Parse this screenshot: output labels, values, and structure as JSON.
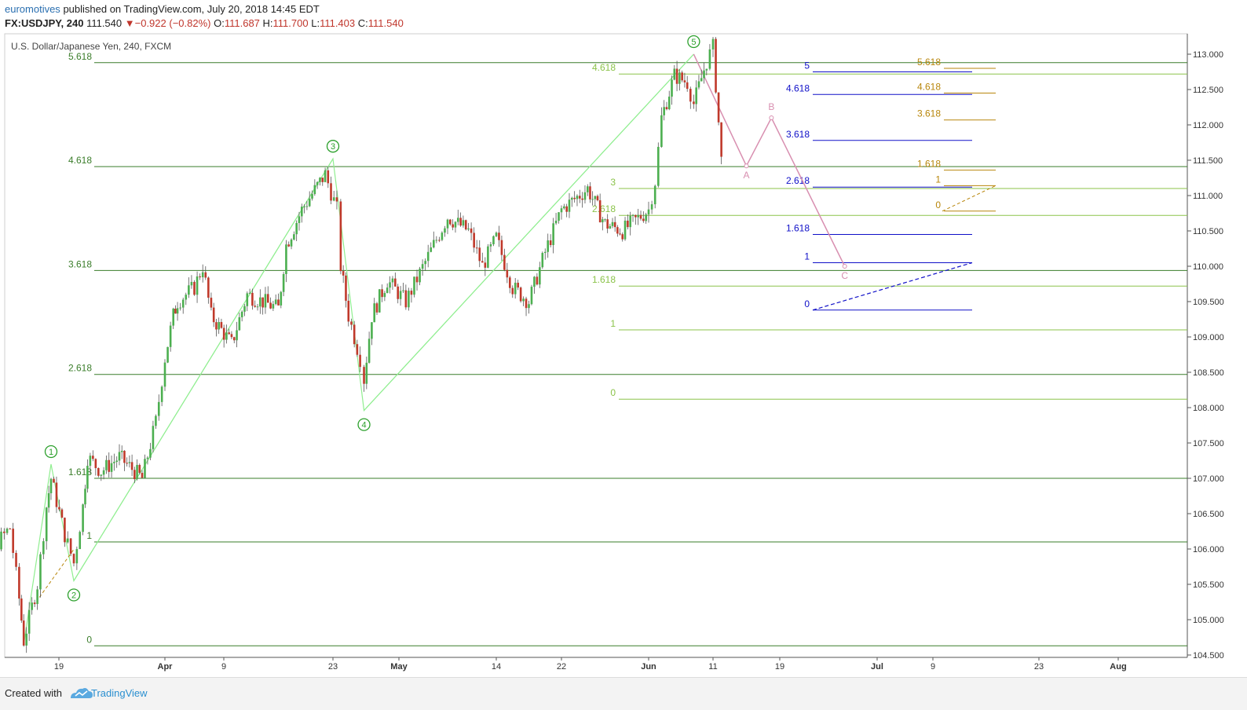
{
  "header": {
    "author": "euromotives",
    "published": "published on TradingView.com, July 20, 2018 14:45 EDT",
    "symbol": "FX:USDJPY, 240",
    "last": "111.540",
    "arrow": "▼",
    "change": "−0.922 (−0.82%)",
    "o_label": "O:",
    "o_value": "111.687",
    "h_label": "H:",
    "h_value": "111.700",
    "l_label": "L:",
    "l_value": "111.403",
    "c_label": "C:",
    "c_value": "111.540"
  },
  "footer": {
    "created": "Created with",
    "brand": "TradingView",
    "logo_icon": "tradingview-cloud-icon"
  },
  "colors": {
    "up": "#4caf50",
    "down": "#c0392b",
    "fib_main": "#3a7d2a",
    "fib_light": "#8bc34a",
    "fib_blue": "#1010c8",
    "fib_gold": "#b8860b",
    "wave_green": "#2ca02c",
    "wave_pink": "#d88fb0",
    "channel": "#90ee90"
  },
  "chart_data": {
    "type": "candlestick",
    "title": "U.S. Dollar/Japanese Yen, 240, FXCM",
    "xlabel": "",
    "ylabel": "",
    "ylim": [
      104.5,
      113.25
    ],
    "y_ticks": [
      "113.000",
      "112.500",
      "112.000",
      "111.500",
      "111.000",
      "110.500",
      "110.000",
      "109.500",
      "109.000",
      "108.500",
      "108.000",
      "107.500",
      "107.000",
      "106.500",
      "106.000",
      "105.500",
      "105.000",
      "104.500"
    ],
    "x_ticks": [
      "19",
      "Apr",
      "9",
      "23",
      "May",
      "14",
      "22",
      "Jun",
      "11",
      "19",
      "Jul",
      "9",
      "23",
      "Aug"
    ],
    "price_path": [
      [
        "Mar 12",
        106.6
      ],
      [
        "Mar 14",
        107.1
      ],
      [
        "Mar 16",
        106.4
      ],
      [
        "Mar 18",
        106.1
      ],
      [
        "Mar 20",
        106.3
      ],
      [
        "Mar 22",
        105.3
      ],
      [
        "Mar 23",
        104.7
      ],
      [
        "Mar 26",
        105.5
      ],
      [
        "Mar 28",
        106.6
      ],
      [
        "Mar 29",
        107.0
      ],
      [
        "Apr 1",
        106.2
      ],
      [
        "Apr 3",
        105.8
      ],
      [
        "Apr 5",
        106.6
      ],
      [
        "Apr 6",
        107.3
      ],
      [
        "Apr 9",
        107.1
      ],
      [
        "Apr 13",
        107.3
      ],
      [
        "Apr 18",
        107.0
      ],
      [
        "Apr 21",
        107.8
      ],
      [
        "Apr 23",
        108.7
      ],
      [
        "Apr 25",
        109.3
      ],
      [
        "Apr 26",
        109.5
      ],
      [
        "Apr 30",
        109.7
      ],
      [
        "May 2",
        110.0
      ],
      [
        "May 4",
        109.3
      ],
      [
        "May 8",
        108.9
      ],
      [
        "May 10",
        109.6
      ],
      [
        "May 14",
        109.4
      ],
      [
        "May 15",
        110.3
      ],
      [
        "May 17",
        110.8
      ],
      [
        "May 20",
        111.3
      ],
      [
        "May 22",
        110.8
      ],
      [
        "May 23",
        110.0
      ],
      [
        "May 25",
        109.3
      ],
      [
        "May 28",
        108.7
      ],
      [
        "May 29",
        108.4
      ],
      [
        "May 31",
        109.3
      ],
      [
        "Jun 4",
        109.8
      ],
      [
        "Jun 8",
        109.5
      ],
      [
        "Jun 12",
        110.3
      ],
      [
        "Jun 14",
        110.7
      ],
      [
        "Jun 17",
        110.5
      ],
      [
        "Jun 19",
        110.0
      ],
      [
        "Jun 21",
        110.4
      ],
      [
        "Jun 23",
        109.7
      ],
      [
        "Jun 25",
        109.5
      ],
      [
        "Jun 27",
        110.2
      ],
      [
        "Jun 29",
        110.8
      ],
      [
        "Jul 2",
        111.1
      ],
      [
        "Jul 4",
        110.6
      ],
      [
        "Jul 6",
        110.5
      ],
      [
        "Jul 9",
        110.8
      ],
      [
        "Jul 10",
        111.2
      ],
      [
        "Jul 11",
        112.1
      ],
      [
        "Jul 13",
        112.7
      ],
      [
        "Jul 15",
        112.6
      ],
      [
        "Jul 16",
        112.3
      ],
      [
        "Jul 18",
        112.9
      ],
      [
        "Jul 19",
        113.1
      ],
      [
        "Jul 20",
        111.5
      ]
    ],
    "fib_levels_main": [
      {
        "label": "5.618",
        "value": 112.88
      },
      {
        "label": "4.618",
        "value": 111.41
      },
      {
        "label": "3.618",
        "value": 109.94
      },
      {
        "label": "2.618",
        "value": 108.47
      },
      {
        "label": "1.618",
        "value": 107.0
      },
      {
        "label": "1",
        "value": 106.1
      },
      {
        "label": "0",
        "value": 104.63
      }
    ],
    "fib_levels_light": [
      {
        "label": "4.618",
        "value": 112.72
      },
      {
        "label": "3",
        "value": 111.1
      },
      {
        "label": "2.618",
        "value": 110.72
      },
      {
        "label": "1.618",
        "value": 109.72
      },
      {
        "label": "1",
        "value": 109.1
      },
      {
        "label": "0",
        "value": 108.12
      }
    ],
    "fib_levels_blue": [
      {
        "label": "5",
        "value": 112.75
      },
      {
        "label": "4.618",
        "value": 112.43
      },
      {
        "label": "3.618",
        "value": 111.78
      },
      {
        "label": "2.618",
        "value": 111.12
      },
      {
        "label": "1.618",
        "value": 110.45
      },
      {
        "label": "1",
        "value": 110.05
      },
      {
        "label": "0",
        "value": 109.38
      }
    ],
    "fib_levels_gold": [
      {
        "label": "5.618",
        "value": 112.8
      },
      {
        "label": "4.618",
        "value": 112.45
      },
      {
        "label": "3.618",
        "value": 112.07
      },
      {
        "label": "1.618",
        "value": 111.36
      },
      {
        "label": "1",
        "value": 111.14
      },
      {
        "label": "0",
        "value": 110.78
      }
    ],
    "wave_labels": [
      {
        "label": "1",
        "date": "Mar 29",
        "price": 107.2
      },
      {
        "label": "2",
        "date": "Apr 3",
        "price": 105.55
      },
      {
        "label": "3",
        "date": "May 21",
        "price": 111.52
      },
      {
        "label": "4",
        "date": "May 29",
        "price": 107.96
      },
      {
        "label": "5",
        "date": "Jul 16",
        "price": 113.0
      }
    ],
    "abc_projection": [
      {
        "label": "A",
        "date": "Jul 23",
        "price": 111.42
      },
      {
        "label": "B",
        "date": "Jul 26",
        "price": 112.1
      },
      {
        "label": "C",
        "date": "Aug 4",
        "price": 110.0
      }
    ]
  }
}
